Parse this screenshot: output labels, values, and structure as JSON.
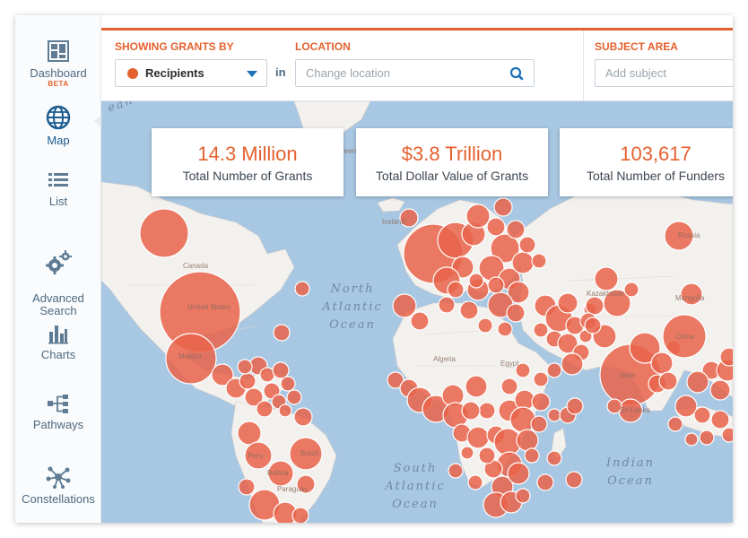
{
  "sidebar": {
    "items": [
      {
        "label": "Dashboard",
        "badge": "BETA",
        "icon": "dashboard-icon"
      },
      {
        "label": "Map",
        "icon": "globe-icon"
      },
      {
        "label": "List",
        "icon": "list-icon"
      },
      {
        "label": "Advanced\nSearch",
        "icon": "gears-icon"
      },
      {
        "label": "Charts",
        "icon": "bar-chart-icon"
      },
      {
        "label": "Pathways",
        "icon": "pathways-icon"
      },
      {
        "label": "Constellations",
        "icon": "constellation-icon"
      }
    ],
    "active": "Map"
  },
  "filters": {
    "showing_label": "SHOWING GRANTS BY",
    "showing_value": "Recipients",
    "in_label": "in",
    "location_label": "LOCATION",
    "location_placeholder": "Change location",
    "subject_label": "SUBJECT AREA",
    "subject_placeholder": "Add subject"
  },
  "stats": [
    {
      "value": "14.3 Million",
      "label": "Total Number of Grants"
    },
    {
      "value": "$3.8 Trillion",
      "label": "Total Dollar Value of Grants"
    },
    {
      "value": "103,617",
      "label": "Total Number of Funders"
    }
  ],
  "map": {
    "oceans": {
      "north_atlantic": "North\nAtlantic\nOcean",
      "south_atlantic": "South\nAtlantic\nOcean",
      "indian": "Indian\nOcean",
      "pacific_fragment": "ean"
    },
    "country_labels": [
      "Canada",
      "United States",
      "Mexico",
      "Peru",
      "Brazil",
      "Bolivia",
      "Paraguay",
      "Russia",
      "China",
      "India",
      "Kazakhstan",
      "Mongolia",
      "Algeria",
      "Egypt",
      "Sri Lanka",
      "Iceland",
      "Greenland"
    ]
  },
  "colors": {
    "accent": "#e4612f",
    "bubble": "#e8644a",
    "ocean": "#a8c7e2",
    "land": "#f3f1ee",
    "nav_text": "#4c6a82"
  }
}
